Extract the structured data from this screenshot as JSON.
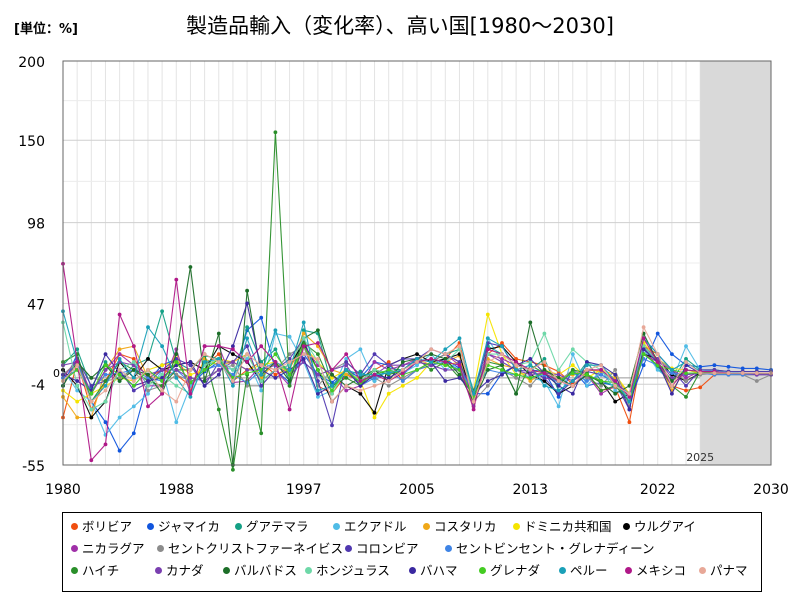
{
  "unit_label": "[単位：%]",
  "chart_data": {
    "type": "line",
    "title": "製造品輸入（変化率）、高い国[1980～2030]",
    "xlabel": "",
    "ylabel": "",
    "xlim": [
      1980,
      2030
    ],
    "ylim": [
      -55,
      200
    ],
    "x_ticks": [
      "1980",
      "1988",
      "1997",
      "2005",
      "2013",
      "2022",
      "2030"
    ],
    "x_tick_values": [
      1980,
      1988,
      1997,
      2005,
      2013,
      2022,
      2030
    ],
    "y_ticks": [
      "200",
      "150",
      "98",
      "47",
      "-4",
      "-55"
    ],
    "y_tick_values": [
      200,
      150,
      98,
      47,
      -4,
      -55
    ],
    "zero_label": "0",
    "forecast_start": 2025,
    "forecast_label": "2025",
    "grid": true,
    "legend_position": "bottom",
    "x": [
      1980,
      1981,
      1982,
      1983,
      1984,
      1985,
      1986,
      1987,
      1988,
      1989,
      1990,
      1991,
      1992,
      1993,
      1994,
      1995,
      1996,
      1997,
      1998,
      1999,
      2000,
      2001,
      2002,
      2003,
      2004,
      2005,
      2006,
      2007,
      2008,
      2009,
      2010,
      2011,
      2012,
      2013,
      2014,
      2015,
      2016,
      2017,
      2018,
      2019,
      2020,
      2021,
      2022,
      2023,
      2024,
      2025,
      2026,
      2027,
      2028,
      2029,
      2030
    ],
    "series": [
      {
        "name": "ボリビア",
        "color": "#f04e0f",
        "values": [
          -25,
          10,
          -20,
          -2,
          15,
          12,
          0,
          5,
          2,
          -5,
          8,
          15,
          -2,
          5,
          10,
          2,
          6,
          22,
          -5,
          -10,
          2,
          -2,
          5,
          10,
          -2,
          5,
          8,
          12,
          22,
          -15,
          15,
          22,
          12,
          10,
          8,
          4,
          -4,
          2,
          -8,
          -6,
          -28,
          20,
          15,
          -5,
          -8,
          -6,
          2,
          3,
          2,
          2,
          2
        ]
      },
      {
        "name": "ジャマイカ",
        "color": "#1155dd",
        "values": [
          -5,
          15,
          -15,
          -28,
          -46,
          -35,
          -2,
          8,
          12,
          -5,
          4,
          10,
          0,
          30,
          38,
          5,
          -3,
          15,
          2,
          -3,
          5,
          0,
          10,
          8,
          2,
          10,
          8,
          12,
          6,
          -10,
          -10,
          3,
          8,
          5,
          4,
          -12,
          5,
          -5,
          -3,
          -5,
          -15,
          8,
          28,
          15,
          8,
          7,
          8,
          7,
          6,
          6,
          5
        ]
      },
      {
        "name": "グアテマラ",
        "color": "#14a085",
        "values": [
          8,
          18,
          -6,
          10,
          -2,
          8,
          12,
          42,
          10,
          5,
          14,
          12,
          -2,
          32,
          10,
          18,
          -2,
          30,
          28,
          -5,
          2,
          4,
          -2,
          6,
          5,
          12,
          10,
          15,
          18,
          -8,
          20,
          15,
          8,
          5,
          12,
          -8,
          -2,
          10,
          -2,
          -5,
          -12,
          20,
          6,
          -2,
          12,
          5,
          5,
          4,
          4,
          4,
          4
        ]
      },
      {
        "name": "エクアドル",
        "color": "#50bce6",
        "values": [
          5,
          -8,
          -15,
          -36,
          -25,
          -18,
          -10,
          5,
          -28,
          -5,
          10,
          8,
          5,
          12,
          -8,
          28,
          26,
          10,
          -12,
          -8,
          12,
          18,
          -2,
          5,
          3,
          8,
          15,
          5,
          10,
          -15,
          25,
          10,
          5,
          0,
          -2,
          -18,
          15,
          -5,
          5,
          -8,
          -12,
          18,
          5,
          -2,
          20,
          5,
          4,
          4,
          3,
          3,
          3
        ]
      },
      {
        "name": "コスタリカ",
        "color": "#f0a818",
        "values": [
          -12,
          -25,
          -25,
          5,
          18,
          20,
          0,
          0,
          15,
          -8,
          12,
          8,
          10,
          15,
          0,
          10,
          5,
          28,
          20,
          5,
          2,
          0,
          5,
          3,
          5,
          12,
          8,
          10,
          14,
          -18,
          12,
          8,
          6,
          -2,
          4,
          0,
          2,
          5,
          4,
          0,
          -10,
          15,
          10,
          -8,
          5,
          3,
          3,
          3,
          3,
          3,
          2
        ]
      },
      {
        "name": "ドミニカ共和国",
        "color": "#f5e400",
        "values": [
          -8,
          -15,
          -10,
          -5,
          0,
          -2,
          5,
          8,
          10,
          2,
          5,
          12,
          10,
          5,
          8,
          10,
          2,
          20,
          10,
          0,
          5,
          -2,
          -25,
          -10,
          -5,
          0,
          10,
          8,
          10,
          -8,
          40,
          15,
          2,
          3,
          5,
          2,
          8,
          0,
          5,
          2,
          -10,
          22,
          12,
          6,
          5,
          3,
          4,
          3,
          3,
          3,
          3
        ]
      },
      {
        "name": "ウルグアイ",
        "color": "#000000",
        "values": [
          5,
          -5,
          -25,
          -15,
          10,
          0,
          12,
          5,
          8,
          10,
          5,
          20,
          15,
          10,
          -2,
          5,
          8,
          22,
          5,
          -15,
          -5,
          -10,
          -22,
          8,
          12,
          15,
          10,
          12,
          15,
          -15,
          18,
          20,
          10,
          2,
          -2,
          -10,
          -5,
          2,
          -2,
          -15,
          -10,
          15,
          12,
          2,
          -2,
          3,
          3,
          3,
          3,
          3,
          3
        ]
      },
      {
        "name": "ニカラグア",
        "color": "#a030a8",
        "values": [
          0,
          12,
          -10,
          5,
          15,
          8,
          -5,
          -5,
          18,
          -10,
          20,
          20,
          -3,
          -2,
          8,
          5,
          -5,
          20,
          8,
          2,
          -8,
          -5,
          10,
          5,
          8,
          12,
          10,
          15,
          8,
          -8,
          15,
          12,
          8,
          5,
          0,
          -2,
          -5,
          2,
          -10,
          -5,
          -15,
          15,
          10,
          5,
          0,
          4,
          4,
          3,
          3,
          3,
          3
        ]
      },
      {
        "name": "セントクリストファーネイビス",
        "color": "#8c8c8c",
        "values": [
          2,
          10,
          0,
          -2,
          0,
          5,
          -8,
          -5,
          2,
          -2,
          0,
          5,
          8,
          -5,
          -5,
          5,
          15,
          20,
          -5,
          5,
          10,
          2,
          0,
          -5,
          0,
          5,
          10,
          15,
          10,
          -15,
          -5,
          5,
          0,
          -5,
          5,
          -2,
          5,
          0,
          -5,
          5,
          -18,
          20,
          12,
          5,
          -2,
          2,
          3,
          2,
          2,
          -2,
          2
        ]
      },
      {
        "name": "コロンビア",
        "color": "#5038b0",
        "values": [
          -5,
          12,
          -5,
          -2,
          5,
          -8,
          -3,
          5,
          12,
          8,
          -5,
          10,
          10,
          20,
          -5,
          5,
          12,
          25,
          -2,
          -30,
          10,
          2,
          15,
          8,
          12,
          12,
          18,
          15,
          10,
          -12,
          22,
          20,
          5,
          4,
          0,
          -10,
          -2,
          4,
          2,
          -3,
          -20,
          25,
          15,
          5,
          -5,
          5,
          5,
          4,
          4,
          4,
          4
        ]
      },
      {
        "name": "セントビンセント・グレナディーン",
        "color": "#3f84e5",
        "values": [
          0,
          5,
          -8,
          2,
          3,
          5,
          0,
          -2,
          5,
          -3,
          5,
          8,
          2,
          -3,
          5,
          10,
          5,
          10,
          2,
          -5,
          5,
          -5,
          0,
          5,
          -2,
          5,
          8,
          10,
          5,
          -8,
          5,
          3,
          2,
          0,
          2,
          -3,
          3,
          -2,
          2,
          -3,
          -10,
          12,
          8,
          3,
          2,
          3,
          2,
          2,
          2,
          2,
          2
        ]
      },
      {
        "name": "ハイチ",
        "color": "#2a8f2a",
        "values": [
          10,
          15,
          -15,
          -2,
          10,
          5,
          -2,
          -5,
          5,
          5,
          15,
          -20,
          -58,
          2,
          -35,
          155,
          -5,
          22,
          15,
          -5,
          0,
          -5,
          5,
          2,
          5,
          12,
          5,
          10,
          0,
          -8,
          10,
          8,
          -10,
          8,
          3,
          -5,
          5,
          3,
          -8,
          -5,
          -15,
          15,
          8,
          -5,
          -12,
          4,
          4,
          3,
          3,
          3,
          3
        ]
      },
      {
        "name": "カナダ",
        "color": "#7a3fb0",
        "values": [
          8,
          10,
          -10,
          5,
          10,
          8,
          2,
          5,
          5,
          0,
          -2,
          5,
          10,
          5,
          5,
          8,
          2,
          10,
          2,
          5,
          8,
          -5,
          2,
          8,
          8,
          10,
          8,
          5,
          5,
          -18,
          15,
          10,
          5,
          2,
          3,
          2,
          -2,
          5,
          5,
          -3,
          -12,
          18,
          12,
          0,
          2,
          3,
          3,
          3,
          3,
          2,
          2
        ]
      },
      {
        "name": "バルバドス",
        "color": "#1c6e28",
        "values": [
          -5,
          10,
          0,
          8,
          -2,
          5,
          2,
          -10,
          15,
          70,
          -2,
          28,
          -55,
          55,
          2,
          10,
          -2,
          25,
          30,
          2,
          -5,
          0,
          5,
          -2,
          10,
          12,
          15,
          12,
          2,
          -15,
          5,
          8,
          -10,
          35,
          5,
          0,
          -5,
          2,
          -3,
          -10,
          -5,
          28,
          10,
          -2,
          5,
          4,
          3,
          3,
          3,
          3,
          3
        ]
      },
      {
        "name": "ホンジュラス",
        "color": "#6ed8a8",
        "values": [
          35,
          -5,
          -20,
          -15,
          5,
          10,
          -5,
          2,
          -5,
          -10,
          8,
          12,
          5,
          15,
          -2,
          5,
          8,
          25,
          10,
          -10,
          5,
          -2,
          5,
          3,
          5,
          10,
          12,
          10,
          18,
          -10,
          15,
          15,
          8,
          10,
          28,
          5,
          18,
          10,
          5,
          -5,
          -12,
          20,
          10,
          -5,
          5,
          4,
          4,
          3,
          3,
          3,
          3
        ]
      },
      {
        "name": "バハマ",
        "color": "#3a28a0",
        "values": [
          2,
          -2,
          -8,
          15,
          3,
          -5,
          -2,
          0,
          8,
          10,
          -5,
          2,
          20,
          47,
          5,
          0,
          5,
          12,
          -10,
          -5,
          5,
          -5,
          2,
          0,
          5,
          12,
          10,
          -2,
          0,
          -10,
          -2,
          2,
          8,
          12,
          3,
          -5,
          -10,
          10,
          8,
          2,
          -20,
          18,
          10,
          -10,
          8,
          3,
          3,
          3,
          3,
          3,
          3
        ]
      },
      {
        "name": "グレナダ",
        "color": "#44cc22",
        "values": [
          -2,
          5,
          -10,
          8,
          2,
          -5,
          5,
          -2,
          10,
          -3,
          5,
          12,
          0,
          3,
          5,
          15,
          2,
          20,
          5,
          -8,
          5,
          -3,
          2,
          5,
          2,
          5,
          10,
          8,
          5,
          -12,
          8,
          5,
          2,
          0,
          3,
          -2,
          3,
          2,
          -2,
          -3,
          -15,
          15,
          8,
          5,
          3,
          3,
          3,
          3,
          3,
          3,
          3
        ]
      },
      {
        "name": "ペルー",
        "color": "#1aa0b8",
        "values": [
          42,
          10,
          -15,
          -5,
          12,
          0,
          32,
          20,
          0,
          -12,
          10,
          12,
          -5,
          25,
          2,
          30,
          5,
          35,
          -8,
          -5,
          5,
          2,
          2,
          3,
          5,
          12,
          10,
          18,
          25,
          -10,
          25,
          20,
          5,
          8,
          -5,
          -8,
          -2,
          8,
          8,
          -2,
          -15,
          25,
          15,
          5,
          10,
          4,
          4,
          3,
          3,
          3,
          3
        ]
      },
      {
        "name": "メキシコ",
        "color": "#b01888",
        "values": [
          72,
          10,
          -52,
          -42,
          40,
          20,
          -18,
          -10,
          62,
          -10,
          20,
          20,
          18,
          10,
          20,
          10,
          -20,
          20,
          22,
          5,
          15,
          -2,
          2,
          -2,
          3,
          10,
          12,
          10,
          8,
          -20,
          18,
          15,
          10,
          5,
          3,
          -2,
          -5,
          5,
          5,
          -2,
          -12,
          25,
          10,
          -5,
          5,
          4,
          4,
          3,
          3,
          3,
          3
        ]
      },
      {
        "name": "パナマ",
        "color": "#e8a898",
        "values": [
          -2,
          8,
          -15,
          -8,
          5,
          -2,
          5,
          -8,
          -15,
          5,
          15,
          10,
          -2,
          15,
          8,
          5,
          10,
          15,
          12,
          -15,
          -5,
          -8,
          -5,
          -2,
          5,
          10,
          18,
          15,
          20,
          -15,
          10,
          15,
          8,
          5,
          10,
          -2,
          -5,
          5,
          8,
          -5,
          -10,
          32,
          15,
          -5,
          10,
          3,
          3,
          3,
          3,
          3,
          3
        ]
      }
    ]
  }
}
